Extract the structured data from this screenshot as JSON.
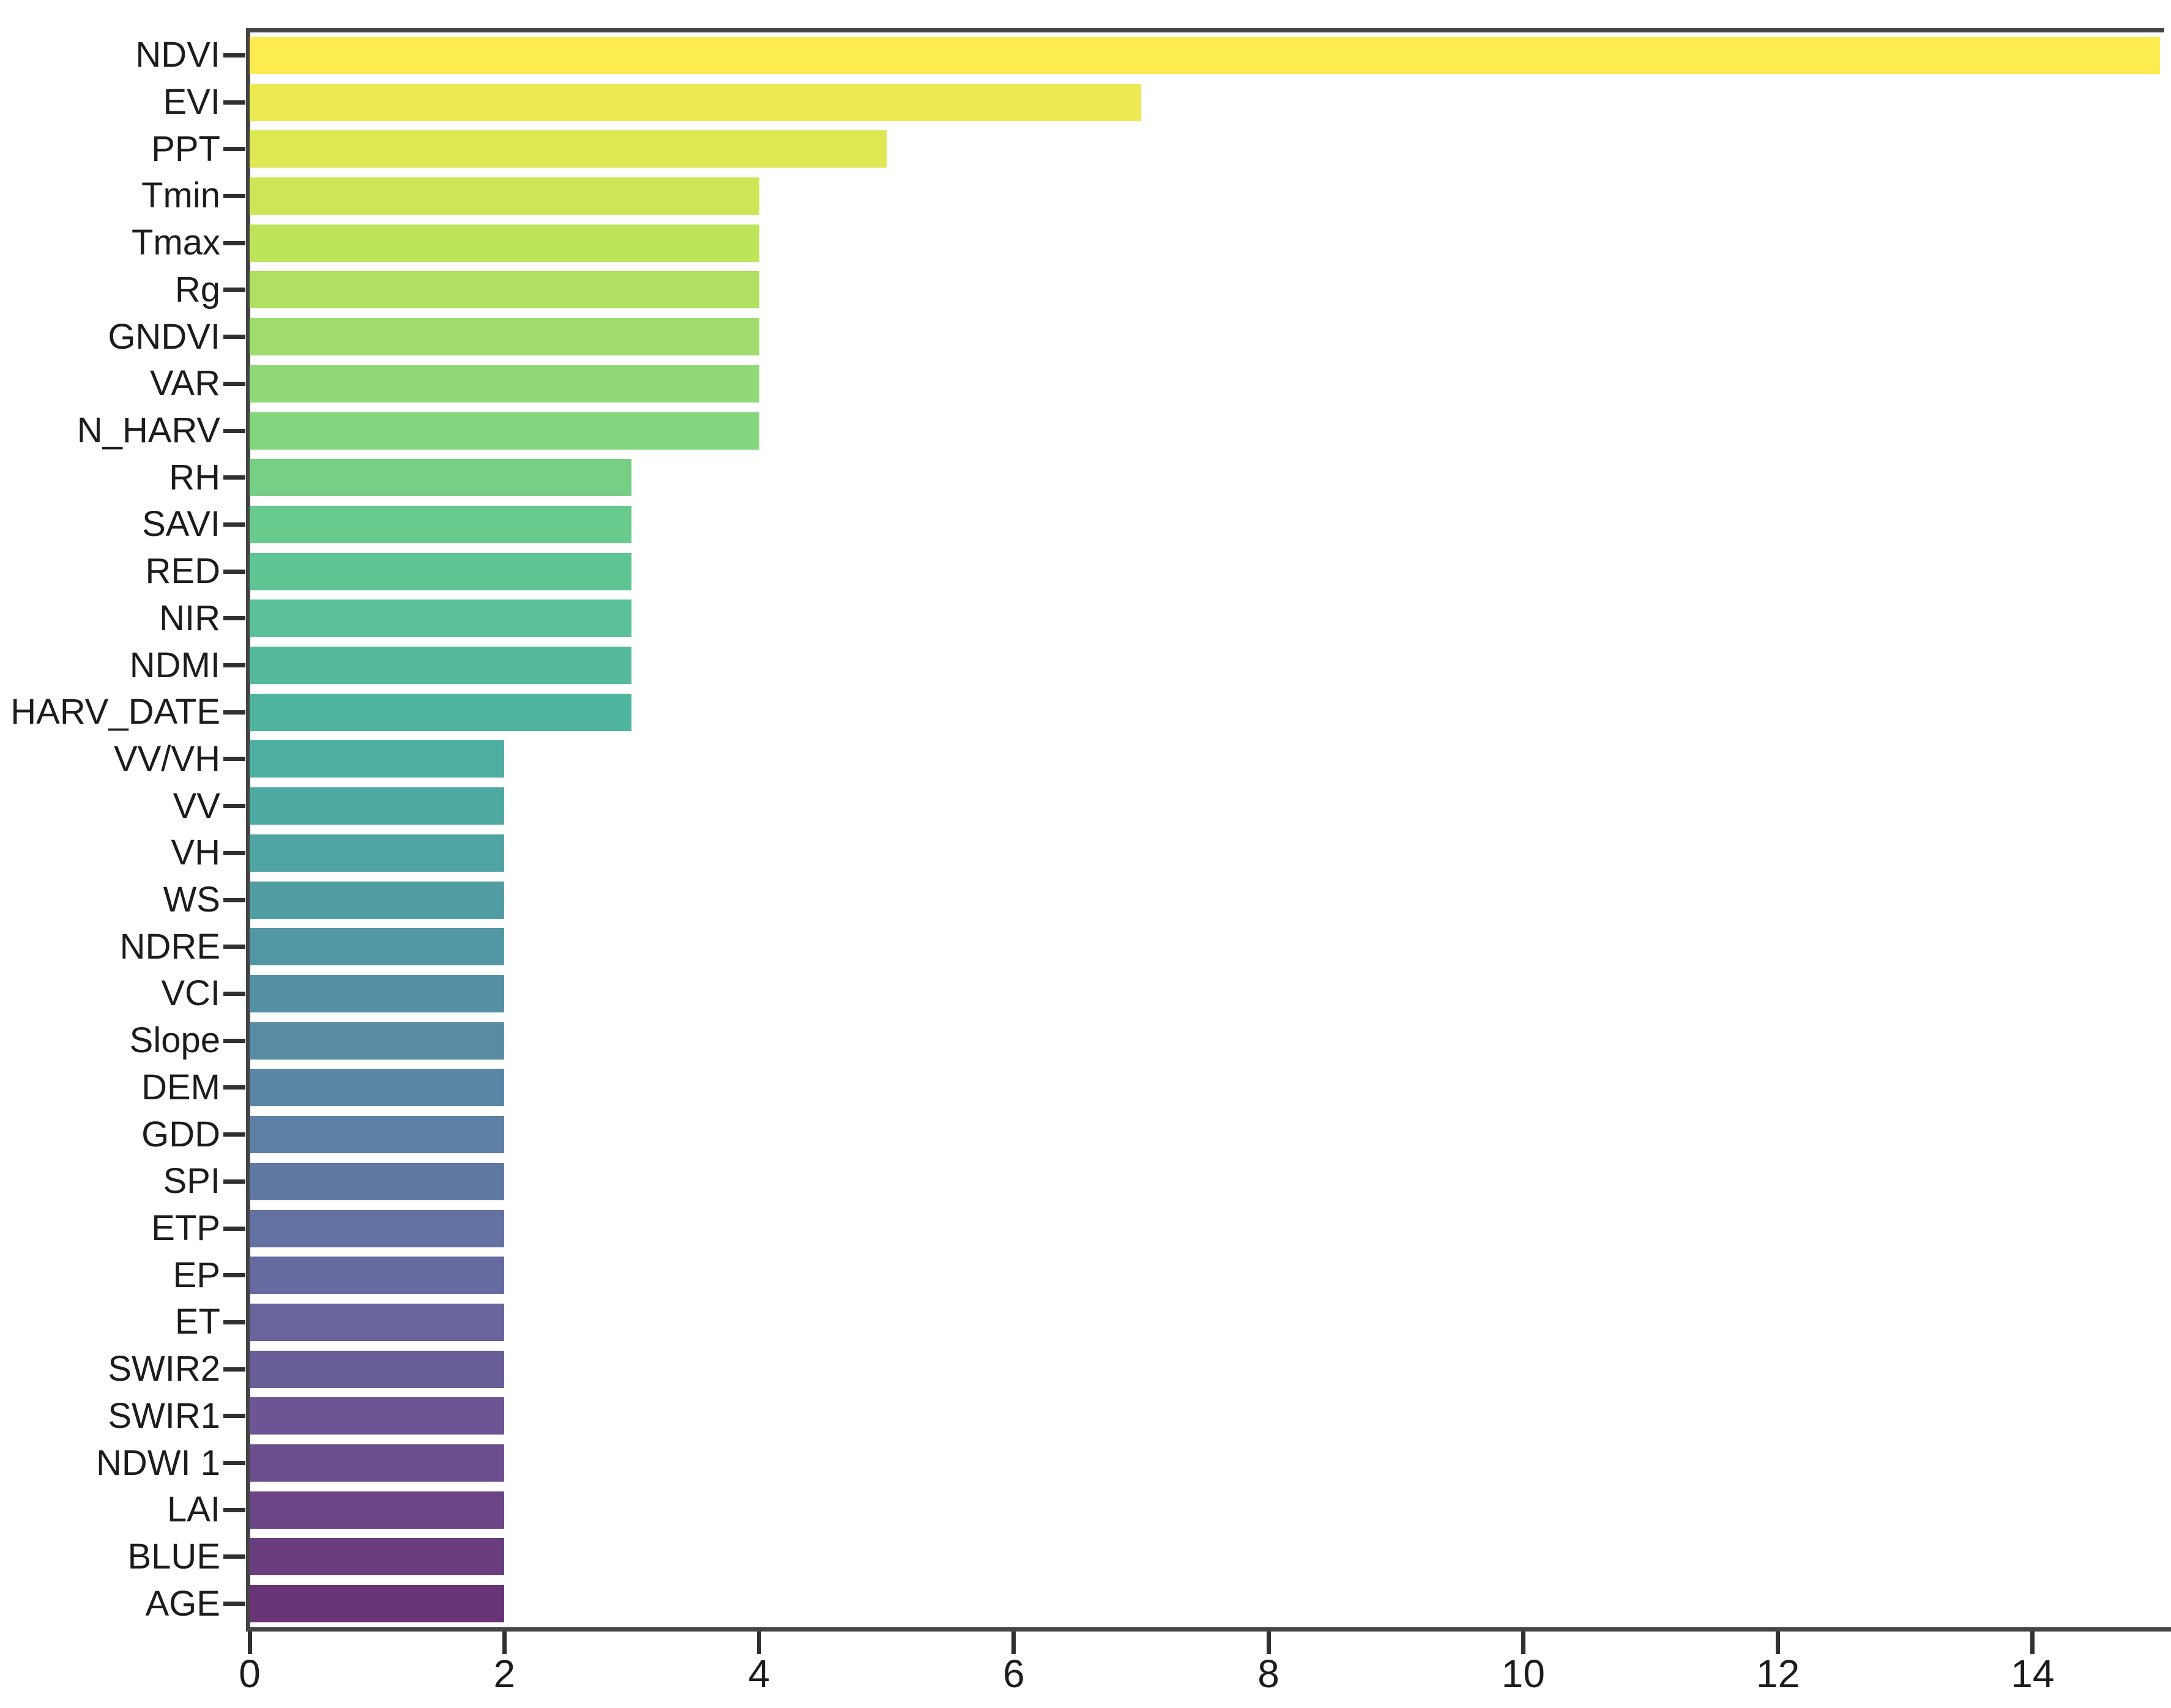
{
  "chart_data": {
    "type": "bar",
    "orientation": "horizontal",
    "title": "",
    "xlabel": "",
    "ylabel": "",
    "grid": false,
    "legend": null,
    "xlim": [
      0,
      15
    ],
    "xticks": [
      0,
      2,
      4,
      6,
      8,
      10,
      12,
      14
    ],
    "categories": [
      "NDVI",
      "EVI",
      "PPT",
      "Tmin",
      "Tmax",
      "Rg",
      "GNDVI",
      "VAR",
      "N_HARV",
      "RH",
      "SAVI",
      "RED",
      "NIR",
      "NDMI",
      "HARV_DATE",
      "VV/VH",
      "VV",
      "VH",
      "WS",
      "NDRE",
      "VCI",
      "Slope",
      "DEM",
      "GDD",
      "SPI",
      "ETP",
      "EP",
      "ET",
      "SWIR2",
      "SWIR1",
      "NDWI 1",
      "LAI",
      "BLUE",
      "AGE"
    ],
    "values": [
      15,
      7,
      5,
      4,
      4,
      4,
      4,
      4,
      4,
      3,
      3,
      3,
      3,
      3,
      3,
      2,
      2,
      2,
      2,
      2,
      2,
      2,
      2,
      2,
      2,
      2,
      2,
      2,
      2,
      2,
      2,
      2,
      2,
      2
    ],
    "bar_colors": [
      "#FDEC51",
      "#EDEA52",
      "#DEE853",
      "#CEE655",
      "#BEE459",
      "#AFE062",
      "#A0DD6D",
      "#90D976",
      "#83D57E",
      "#76CF85",
      "#69CA8D",
      "#5DC594",
      "#59C097",
      "#54BA9B",
      "#4FB59E",
      "#4DAFA1",
      "#4EA9A2",
      "#4FA3A3",
      "#519DA4",
      "#5397A5",
      "#5591A5",
      "#588CA5",
      "#5A86A5",
      "#5D80A4",
      "#6079A2",
      "#6372A1",
      "#656BA0",
      "#68649C",
      "#695D98",
      "#6D5595",
      "#6C4D8E",
      "#6B4586",
      "#6A3D7E",
      "#693476"
    ],
    "colormap": "viridis, yellow at top to dark purple at bottom",
    "colors": {
      "background": "#ffffff",
      "spine": "#454545",
      "tick": "#303030",
      "text": "#1c1c1c"
    }
  }
}
